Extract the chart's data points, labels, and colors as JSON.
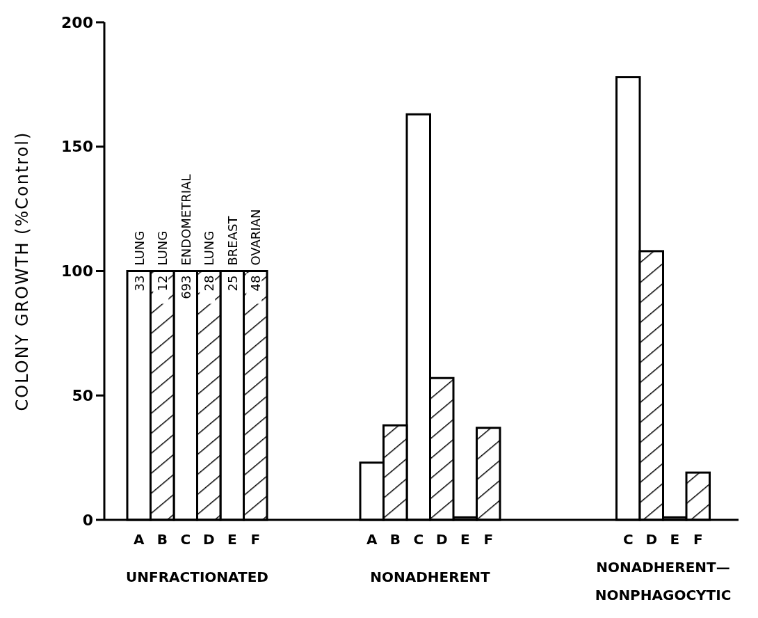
{
  "chart_data": {
    "type": "bar",
    "ylabel": "COLONY GROWTH (%Control)",
    "categories": [
      "A",
      "B",
      "C",
      "D",
      "E",
      "F",
      null,
      null,
      null,
      null,
      "A",
      "B",
      "C",
      "D",
      "E",
      "F",
      null,
      null,
      null,
      null,
      null,
      "C",
      "D",
      "E",
      "F"
    ],
    "series": [
      {
        "color": "#ffffff",
        "values": [
          100,
          null,
          100,
          null,
          100,
          null,
          null,
          null,
          null,
          null,
          23,
          null,
          163,
          null,
          1,
          null,
          null,
          null,
          null,
          null,
          null,
          178,
          null,
          1,
          null
        ]
      },
      {
        "color": "#000000",
        "values": [
          null,
          100,
          null,
          100,
          null,
          100,
          null,
          null,
          null,
          null,
          null,
          38,
          null,
          57,
          null,
          37,
          null,
          null,
          null,
          null,
          null,
          null,
          108,
          null,
          19
        ]
      }
    ],
    "ylim": [
      0,
      200
    ],
    "yticks": [
      0,
      50,
      100,
      150,
      200
    ],
    "annotations": [
      "UNFRACTIONATED",
      "NONADHERENT",
      "NONADHERENT—\nNONPHAGOCYTIC",
      "LUNG",
      "LUNG",
      "ENDOMETRIAL",
      "LUNG",
      "BREAST",
      "OVARIAN",
      "33",
      "12",
      "693",
      "28",
      "25",
      "48"
    ]
  }
}
